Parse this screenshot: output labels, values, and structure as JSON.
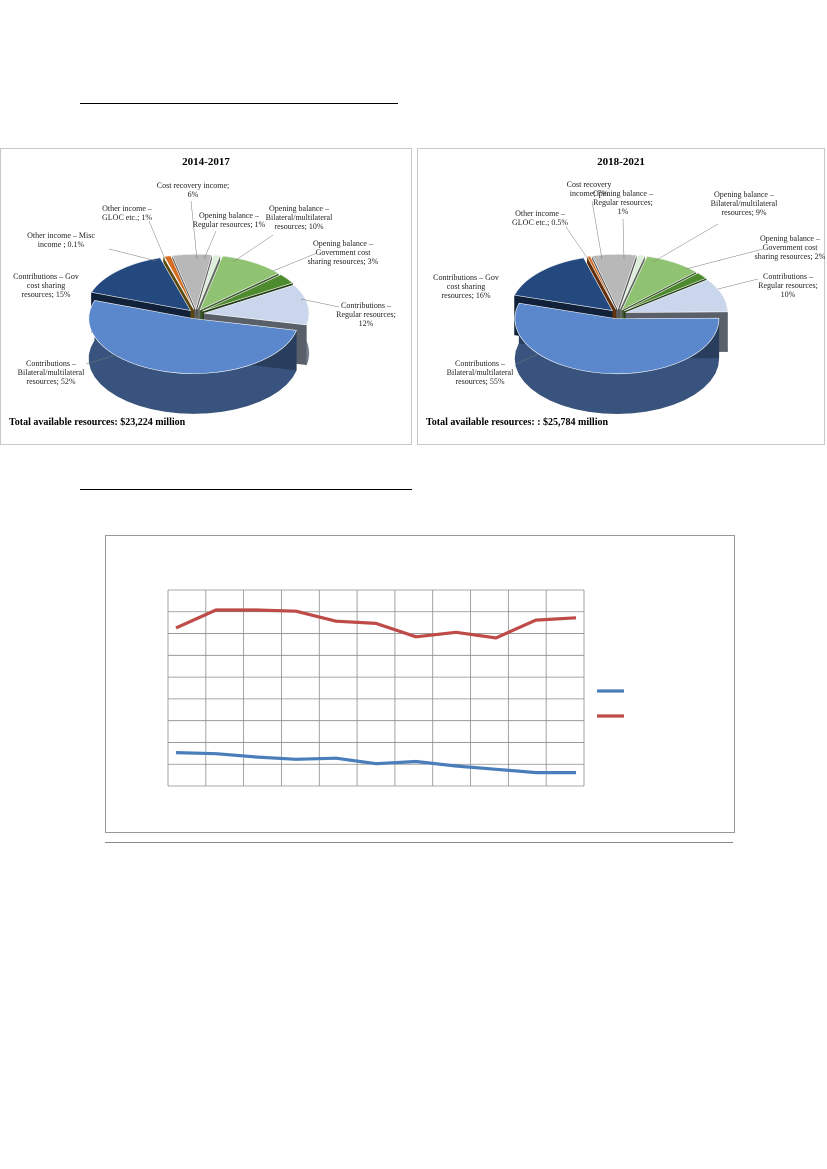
{
  "charts": {
    "pie1": {
      "title": "2014-2017",
      "total": "Total available resources: $23,224 million",
      "slices": [
        {
          "label_lines": [
            "Cost recovery income;",
            "6%"
          ],
          "value": 6
        },
        {
          "label_lines": [
            "Opening balance –",
            "Regular resources; 1%"
          ],
          "value": 1
        },
        {
          "label_lines": [
            "Opening balance –",
            "Bilateral/multilateral",
            "resources; 10%"
          ],
          "value": 10
        },
        {
          "label_lines": [
            "Opening balance –",
            "Government cost",
            "sharing resources; 3%"
          ],
          "value": 3
        },
        {
          "label_lines": [
            "Contributions –",
            "Regular resources;",
            "12%"
          ],
          "value": 12
        },
        {
          "label_lines": [
            "Contributions –",
            "Bilateral/multilateral",
            "resources; 52%"
          ],
          "value": 52
        },
        {
          "label_lines": [
            "Contributions – Gov",
            "cost sharing",
            "resources; 15%"
          ],
          "value": 15
        },
        {
          "label_lines": [
            "Other income – Misc",
            "income ; 0.1%"
          ],
          "value": 0.1
        },
        {
          "label_lines": [
            "Other income –",
            "GLOC etc.; 1%"
          ],
          "value": 1
        }
      ]
    },
    "pie2": {
      "title": "2018-2021",
      "total": "Total available resources: : $25,784 million",
      "slices": [
        {
          "label_lines": [
            "Cost recovery",
            "income; 7%"
          ],
          "value": 7
        },
        {
          "label_lines": [
            "Opening balance –",
            "Regular resources;",
            "1%"
          ],
          "value": 1
        },
        {
          "label_lines": [
            "Opening balance –",
            "Bilateral/multilateral",
            "resources; 9%"
          ],
          "value": 9
        },
        {
          "label_lines": [
            "Opening balance –",
            "Government cost",
            "sharing resources; 2%"
          ],
          "value": 2
        },
        {
          "label_lines": [
            "Contributions –",
            "Regular resources;",
            "10%"
          ],
          "value": 10
        },
        {
          "label_lines": [
            "Contributions –",
            "Bilateral/multilateral",
            "resources; 55%"
          ],
          "value": 55
        },
        {
          "label_lines": [
            "Contributions – Gov",
            "cost sharing",
            "resources; 16%"
          ],
          "value": 16
        },
        {
          "label_lines": [
            "Other income –",
            "GLOC etc.; 0.5%"
          ],
          "value": 0.5
        }
      ]
    },
    "line": {
      "type": "line",
      "series": [
        {
          "values": [
            30,
            29,
            26,
            24,
            25,
            20,
            22,
            18,
            15,
            12,
            12
          ],
          "color": "#4a7ebb"
        },
        {
          "values": [
            142,
            158,
            158,
            157,
            148,
            146,
            134,
            138,
            133,
            149,
            151
          ],
          "color": "#be4b48"
        }
      ],
      "ylim": [
        0,
        176
      ],
      "grid_cols": 11,
      "grid_rows": 9
    }
  },
  "colors": {
    "cost_recovery": "#b8b8b8",
    "ob_regular": "#ddeeda",
    "ob_bilateral": "#8fc372",
    "ob_gov": "#4e8a2e",
    "c_regular": "#c9d6ec",
    "c_bilateral": "#5b87cc",
    "c_gov": "#24497f",
    "oi_misc": "#c8a31f",
    "oi_gloc": "#d46c22",
    "c_regular_side": "#585f6a",
    "cost_recovery_side": "#6b6b6b"
  }
}
